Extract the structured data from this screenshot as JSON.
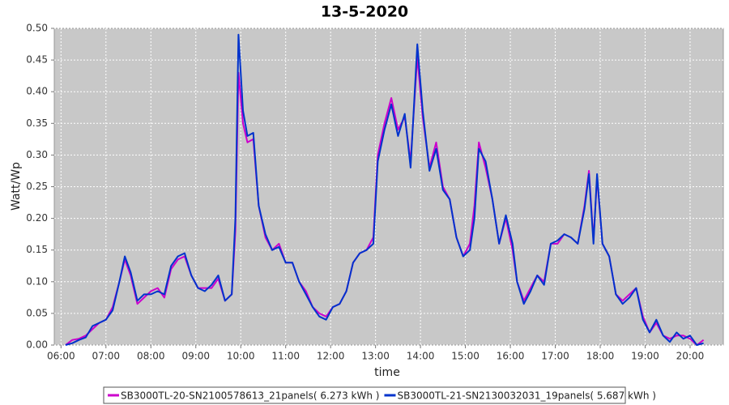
{
  "chart_data": {
    "type": "line",
    "title": "13-5-2020",
    "x_label": "time",
    "y_label": "Watt/Wp",
    "x": [
      6.1,
      6.25,
      6.4,
      6.55,
      6.7,
      6.85,
      7.0,
      7.15,
      7.3,
      7.42,
      7.55,
      7.7,
      7.85,
      8.0,
      8.15,
      8.3,
      8.45,
      8.6,
      8.75,
      8.9,
      9.05,
      9.2,
      9.35,
      9.5,
      9.65,
      9.8,
      9.88,
      9.95,
      10.05,
      10.15,
      10.28,
      10.4,
      10.55,
      10.7,
      10.85,
      11.0,
      11.15,
      11.3,
      11.45,
      11.6,
      11.75,
      11.9,
      12.05,
      12.2,
      12.35,
      12.5,
      12.65,
      12.8,
      12.95,
      13.05,
      13.2,
      13.35,
      13.5,
      13.65,
      13.78,
      13.93,
      14.05,
      14.2,
      14.35,
      14.5,
      14.65,
      14.8,
      14.95,
      15.1,
      15.2,
      15.3,
      15.45,
      15.6,
      15.75,
      15.9,
      16.05,
      16.15,
      16.3,
      16.45,
      16.6,
      16.75,
      16.9,
      17.05,
      17.2,
      17.35,
      17.5,
      17.65,
      17.75,
      17.85,
      17.93,
      18.05,
      18.2,
      18.35,
      18.5,
      18.65,
      18.8,
      18.95,
      19.1,
      19.25,
      19.4,
      19.55,
      19.7,
      19.85,
      20.0,
      20.15,
      20.3
    ],
    "series": [
      {
        "name": "SB3000TL-20-SN2100578613_21panels( 6.273 kWh )",
        "color": "#cc00cc",
        "values": [
          0,
          0.008,
          0.01,
          0.015,
          0.025,
          0.035,
          0.04,
          0.06,
          0.1,
          0.135,
          0.11,
          0.065,
          0.075,
          0.085,
          0.09,
          0.075,
          0.12,
          0.135,
          0.14,
          0.11,
          0.09,
          0.09,
          0.09,
          0.105,
          0.07,
          0.08,
          0.18,
          0.43,
          0.35,
          0.32,
          0.325,
          0.22,
          0.17,
          0.15,
          0.16,
          0.13,
          0.13,
          0.1,
          0.085,
          0.06,
          0.05,
          0.045,
          0.06,
          0.065,
          0.085,
          0.13,
          0.145,
          0.15,
          0.17,
          0.3,
          0.35,
          0.39,
          0.34,
          0.36,
          0.29,
          0.455,
          0.36,
          0.28,
          0.32,
          0.25,
          0.23,
          0.17,
          0.14,
          0.16,
          0.22,
          0.32,
          0.28,
          0.23,
          0.16,
          0.2,
          0.15,
          0.1,
          0.07,
          0.09,
          0.11,
          0.1,
          0.16,
          0.16,
          0.175,
          0.17,
          0.16,
          0.22,
          0.275,
          0.165,
          0.265,
          0.16,
          0.14,
          0.08,
          0.07,
          0.08,
          0.09,
          0.045,
          0.02,
          0.035,
          0.015,
          0.01,
          0.015,
          0.015,
          0.01,
          0,
          0.008
        ]
      },
      {
        "name": "SB3000TL-21-SN2130032031_19panels( 5.687 kWh )",
        "color": "#0033cc",
        "values": [
          0,
          0.003,
          0.008,
          0.012,
          0.03,
          0.035,
          0.04,
          0.055,
          0.1,
          0.14,
          0.115,
          0.07,
          0.08,
          0.08,
          0.085,
          0.08,
          0.125,
          0.14,
          0.145,
          0.11,
          0.09,
          0.085,
          0.095,
          0.11,
          0.07,
          0.08,
          0.2,
          0.49,
          0.37,
          0.33,
          0.335,
          0.22,
          0.175,
          0.15,
          0.155,
          0.13,
          0.13,
          0.1,
          0.08,
          0.06,
          0.045,
          0.04,
          0.06,
          0.065,
          0.085,
          0.13,
          0.145,
          0.15,
          0.16,
          0.29,
          0.34,
          0.38,
          0.33,
          0.365,
          0.28,
          0.475,
          0.37,
          0.275,
          0.31,
          0.245,
          0.23,
          0.17,
          0.14,
          0.15,
          0.2,
          0.31,
          0.29,
          0.23,
          0.16,
          0.205,
          0.16,
          0.1,
          0.065,
          0.085,
          0.11,
          0.095,
          0.16,
          0.165,
          0.175,
          0.17,
          0.16,
          0.215,
          0.27,
          0.16,
          0.27,
          0.16,
          0.14,
          0.08,
          0.065,
          0.075,
          0.09,
          0.04,
          0.02,
          0.04,
          0.015,
          0.005,
          0.02,
          0.01,
          0.015,
          0,
          0.003
        ]
      }
    ],
    "xlim": [
      5.85,
      20.74
    ],
    "xticks": [
      {
        "value": 6,
        "label": "06:00"
      },
      {
        "value": 7,
        "label": "07:00"
      },
      {
        "value": 8,
        "label": "08:00"
      },
      {
        "value": 9,
        "label": "09:00"
      },
      {
        "value": 10,
        "label": "10:00"
      },
      {
        "value": 11,
        "label": "11:00"
      },
      {
        "value": 12,
        "label": "12:00"
      },
      {
        "value": 13,
        "label": "13:00"
      },
      {
        "value": 14,
        "label": "14:00"
      },
      {
        "value": 15,
        "label": "15:00"
      },
      {
        "value": 16,
        "label": "16:00"
      },
      {
        "value": 17,
        "label": "17:00"
      },
      {
        "value": 18,
        "label": "18:00"
      },
      {
        "value": 19,
        "label": "19:00"
      },
      {
        "value": 20,
        "label": "20:00"
      }
    ],
    "ylim": [
      0,
      0.5
    ],
    "yticks": [
      {
        "value": 0,
        "label": "0.00"
      },
      {
        "value": 0.05,
        "label": "0.05"
      },
      {
        "value": 0.1,
        "label": "0.10"
      },
      {
        "value": 0.15,
        "label": "0.15"
      },
      {
        "value": 0.2,
        "label": "0.20"
      },
      {
        "value": 0.25,
        "label": "0.25"
      },
      {
        "value": 0.3,
        "label": "0.30"
      },
      {
        "value": 0.35,
        "label": "0.35"
      },
      {
        "value": 0.4,
        "label": "0.40"
      },
      {
        "value": 0.45,
        "label": "0.45"
      },
      {
        "value": 0.5,
        "label": "0.50"
      }
    ],
    "grid": true,
    "legend": "bottom"
  }
}
